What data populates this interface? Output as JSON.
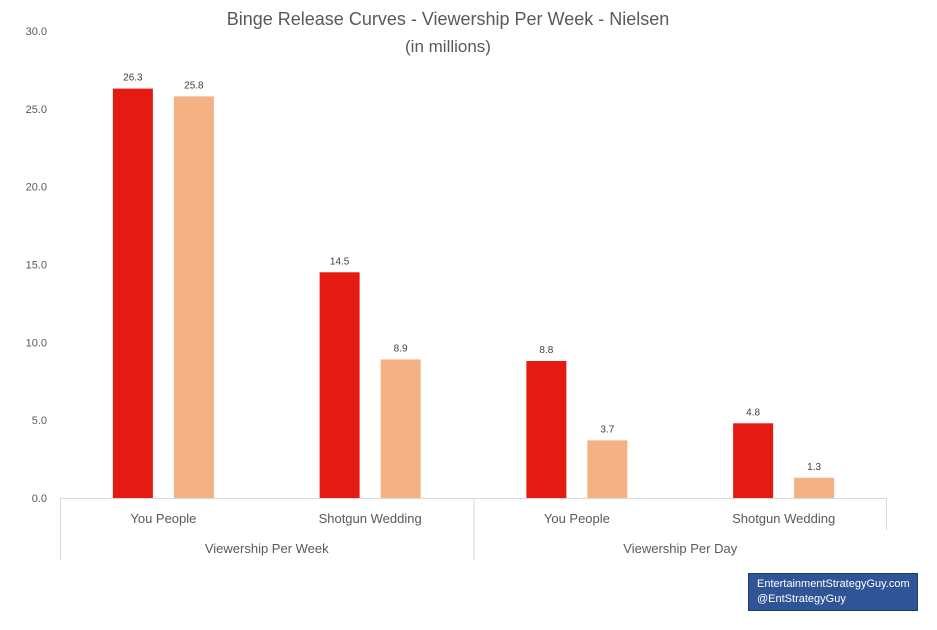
{
  "chart_data": {
    "type": "bar",
    "title": "Binge Release Curves - Viewership Per Week - Nielsen",
    "subtitle": "(in millions)",
    "ylim": [
      0,
      30
    ],
    "yticks": [
      "0.0",
      "5.0",
      "10.0",
      "15.0",
      "20.0",
      "25.0",
      "30.0"
    ],
    "groups": [
      {
        "label": "Viewership Per Week",
        "categories": [
          {
            "label": "You People",
            "values": [
              26.3,
              25.8
            ],
            "labels": [
              "26.3",
              "25.8"
            ]
          },
          {
            "label": "Shotgun Wedding",
            "values": [
              14.5,
              8.9
            ],
            "labels": [
              "14.5",
              "8.9"
            ]
          }
        ]
      },
      {
        "label": "Viewership Per Day",
        "categories": [
          {
            "label": "You People",
            "values": [
              8.8,
              3.7
            ],
            "labels": [
              "8.8",
              "3.7"
            ]
          },
          {
            "label": "Shotgun Wedding",
            "values": [
              4.8,
              1.3
            ],
            "labels": [
              "4.8",
              "1.3"
            ]
          }
        ]
      }
    ],
    "series_colors": [
      "#e41a13",
      "#f4b183"
    ],
    "grid": false,
    "legend": "none"
  },
  "credit": {
    "line1": "EntertainmentStrategyGuy.com",
    "line2": "@EntStrategyGuy"
  }
}
